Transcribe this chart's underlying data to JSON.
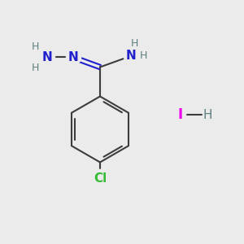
{
  "background_color": "#ebebeb",
  "bond_color": "#3d3d3d",
  "nitrogen_color": "#2020cc",
  "chlorine_color": "#33bb33",
  "iodine_color": "#ee00ee",
  "hydrogen_color": "#608080",
  "bond_width": 1.5,
  "font_size_atom": 11,
  "font_size_h": 9,
  "figsize": [
    3.0,
    3.0
  ],
  "dpi": 100,
  "xlim": [
    0,
    10
  ],
  "ylim": [
    0,
    10
  ]
}
